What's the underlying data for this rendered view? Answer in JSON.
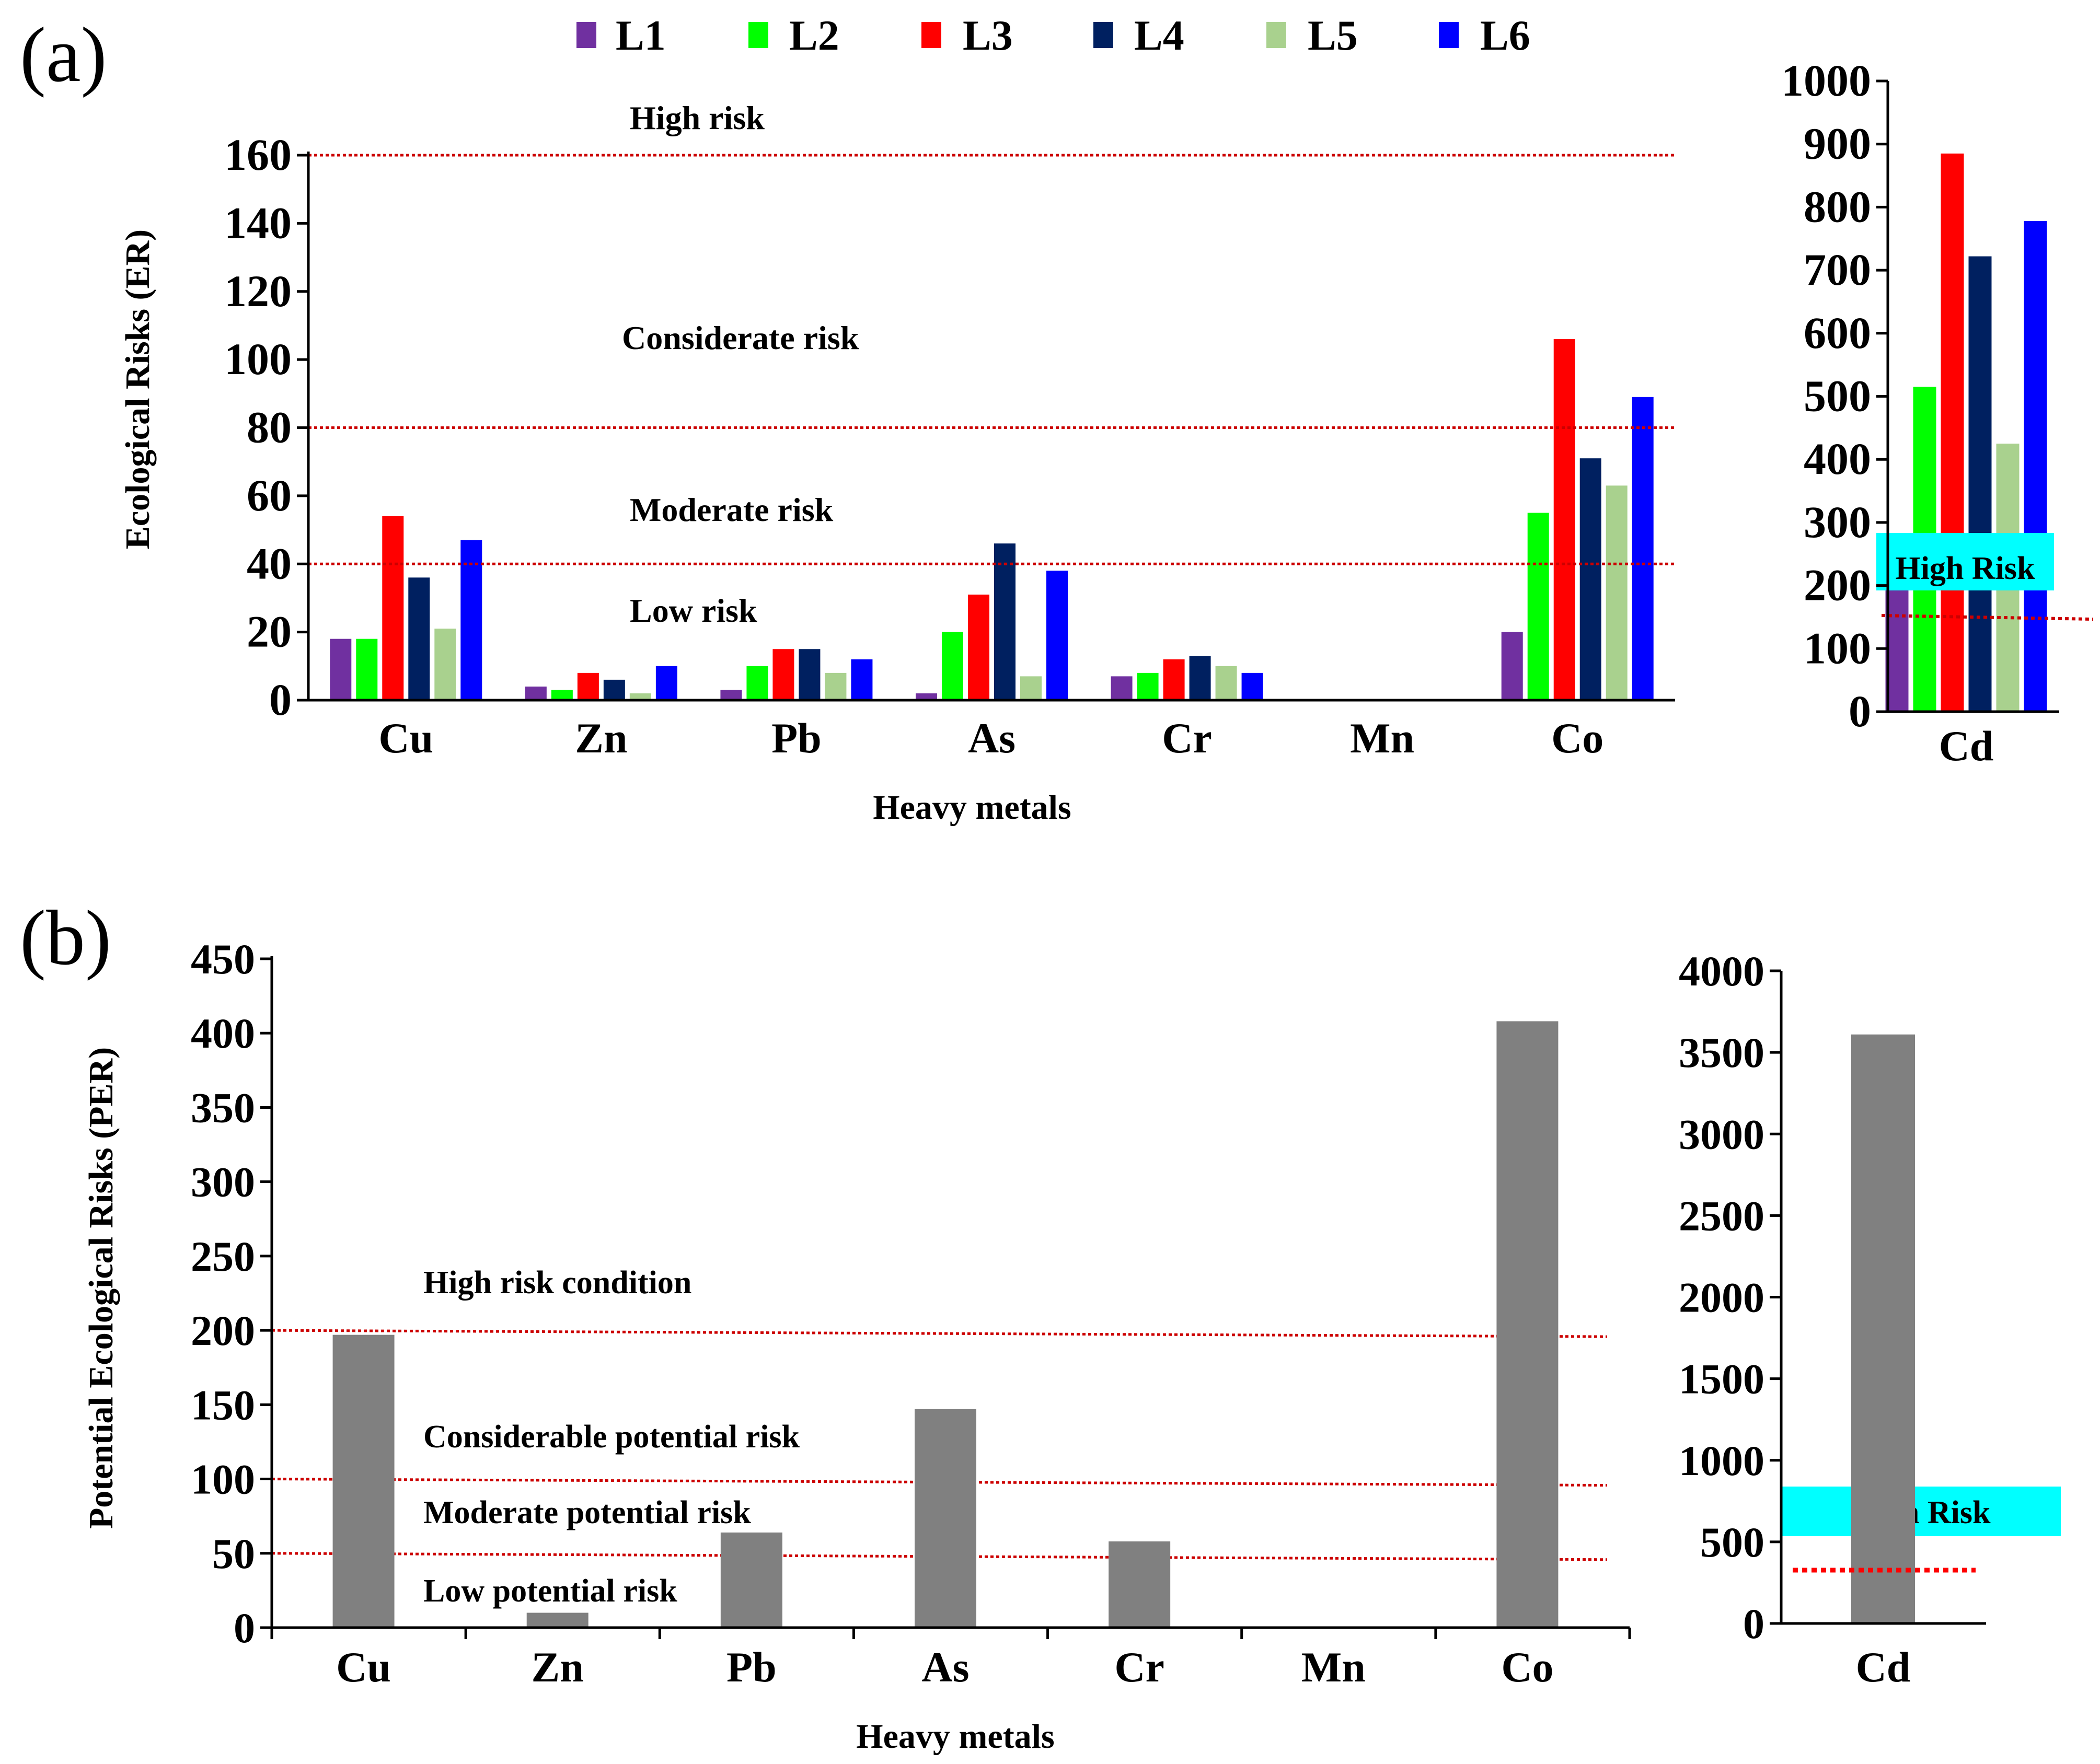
{
  "panel_a_label": "(a)",
  "panel_b_label": "(b)",
  "colors": {
    "L1": "#7030a0",
    "L2": "#00ff00",
    "L3": "#ff0000",
    "L4": "#002060",
    "L5": "#a9d18e",
    "L6": "#0000ff",
    "per_bar": "#808080",
    "threshold": "#cc0000",
    "high_risk_box": "#00ffff"
  },
  "chart_data": [
    {
      "id": "a-main",
      "type": "bar",
      "title": "",
      "xlabel": "Heavy metals",
      "ylabel": "Ecological Risks (ER)",
      "ylim": [
        0,
        160
      ],
      "yticks": [
        "0",
        "20",
        "40",
        "60",
        "80",
        "100",
        "120",
        "140",
        "160"
      ],
      "categories": [
        "Cu",
        "Zn",
        "Pb",
        "As",
        "Cr",
        "Mn",
        "Co"
      ],
      "series": [
        {
          "name": "L1",
          "values": [
            18,
            4,
            3,
            2,
            7,
            0,
            20
          ]
        },
        {
          "name": "L2",
          "values": [
            18,
            3,
            10,
            20,
            8,
            0,
            55
          ]
        },
        {
          "name": "L3",
          "values": [
            54,
            8,
            15,
            31,
            12,
            0,
            106
          ]
        },
        {
          "name": "L4",
          "values": [
            36,
            6,
            15,
            46,
            13,
            0,
            71
          ]
        },
        {
          "name": "L5",
          "values": [
            21,
            2,
            8,
            7,
            10,
            0,
            63
          ]
        },
        {
          "name": "L6",
          "values": [
            47,
            10,
            12,
            38,
            8,
            0,
            89
          ]
        }
      ],
      "thresholds": [
        40,
        80,
        160
      ],
      "annotations": [
        "High risk",
        "Considerate risk",
        "Moderate risk",
        "Low risk"
      ],
      "legend": [
        "L1",
        "L2",
        "L3",
        "L4",
        "L5",
        "L6"
      ],
      "legend_position": "top"
    },
    {
      "id": "a-inset",
      "type": "bar",
      "categories": [
        "Cd"
      ],
      "ylim": [
        0,
        1000
      ],
      "yticks": [
        "0",
        "100",
        "200",
        "300",
        "400",
        "500",
        "600",
        "700",
        "800",
        "900",
        "1000"
      ],
      "series": [
        {
          "name": "L1",
          "values": [
            210
          ]
        },
        {
          "name": "L2",
          "values": [
            515
          ]
        },
        {
          "name": "L3",
          "values": [
            885
          ]
        },
        {
          "name": "L4",
          "values": [
            722
          ]
        },
        {
          "name": "L5",
          "values": [
            425
          ]
        },
        {
          "name": "L6",
          "values": [
            778
          ]
        }
      ],
      "threshold": 155,
      "annotation": "High Risk"
    },
    {
      "id": "b-main",
      "type": "bar",
      "xlabel": "Heavy metals",
      "ylabel": "Potential Ecological Risks (PER)",
      "ylim": [
        0,
        450
      ],
      "yticks": [
        "0",
        "50",
        "100",
        "150",
        "200",
        "250",
        "300",
        "350",
        "400",
        "450"
      ],
      "categories": [
        "Cu",
        "Zn",
        "Pb",
        "As",
        "Cr",
        "Mn",
        "Co"
      ],
      "values": [
        197,
        10,
        64,
        147,
        58,
        0,
        408
      ],
      "thresholds": [
        50,
        100,
        200
      ],
      "annotations": [
        "High risk condition",
        "Considerable potential risk",
        "Moderate potential risk",
        "Low potential risk"
      ]
    },
    {
      "id": "b-inset",
      "type": "bar",
      "categories": [
        "Cd"
      ],
      "ylim": [
        0,
        4000
      ],
      "yticks": [
        "0",
        "500",
        "1000",
        "1500",
        "2000",
        "2500",
        "3000",
        "3500",
        "4000"
      ],
      "values": [
        3610
      ],
      "threshold": 320,
      "annotation": "High Risk"
    }
  ]
}
